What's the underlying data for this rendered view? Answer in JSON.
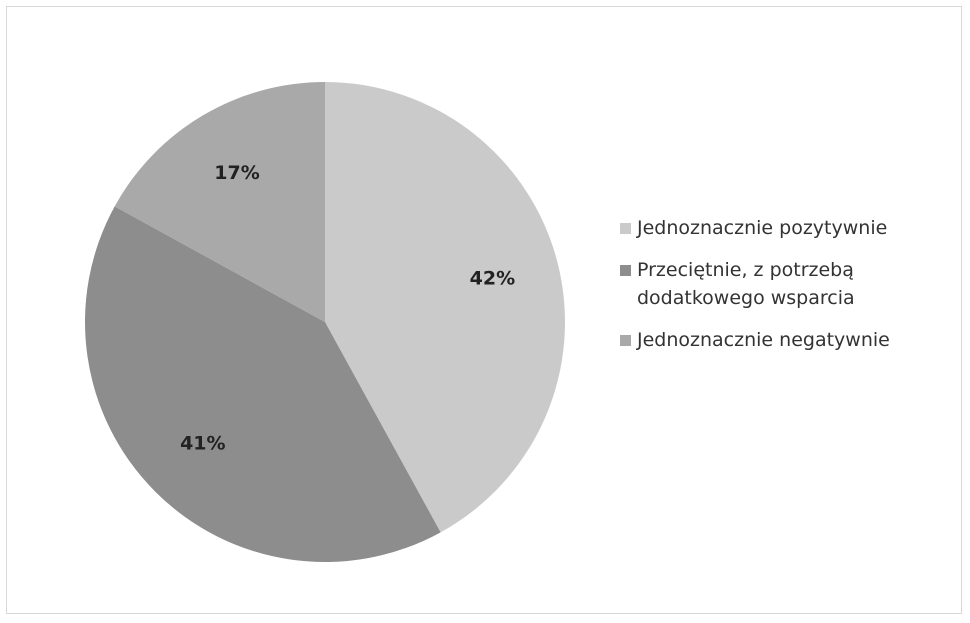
{
  "chart_data": {
    "type": "pie",
    "categories": [
      "Jednoznacznie pozytywnie",
      "Przeciętnie, z potrzebą dodatkowego wsparcia",
      "Jednoznacznie negatywnie"
    ],
    "values": [
      42,
      41,
      17
    ],
    "value_labels": [
      "42%",
      "41%",
      "17%"
    ],
    "colors": [
      "#cacaca",
      "#8d8d8d",
      "#a9a9a9"
    ],
    "legend": "right"
  }
}
